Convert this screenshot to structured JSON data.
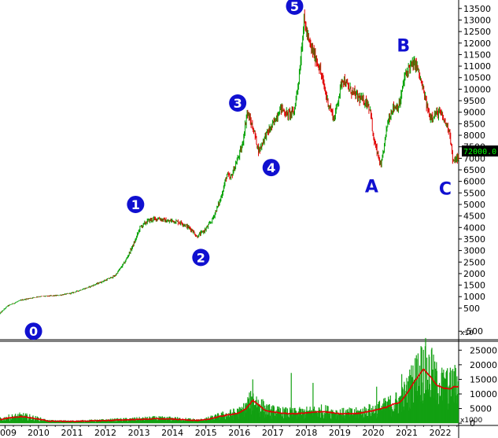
{
  "chart_data": [
    {
      "type": "candlestick",
      "title": "",
      "colors": {
        "up": "#00a000",
        "down": "#e00000",
        "price_label_bg": "#000000",
        "price_label_text": "#00ff00",
        "wave_label": "#1010d0"
      },
      "price_label": "72000.0",
      "y_axis": {
        "ylim": [
          -800,
          13800
        ],
        "tick_values": [
          -500,
          500,
          1000,
          1500,
          2000,
          2500,
          3000,
          3500,
          4000,
          4500,
          5000,
          5500,
          6000,
          6500,
          7000,
          7500,
          8000,
          8500,
          9000,
          9500,
          10000,
          10500,
          11000,
          11500,
          12000,
          12500,
          13000,
          13500
        ],
        "tick_labels": [
          "-500",
          "500",
          "1000",
          "1500",
          "2000",
          "2500",
          "3000",
          "3500",
          "4000",
          "4500",
          "5000",
          "5500",
          "6000",
          "6500",
          "7000",
          "7500",
          "8000",
          "8500",
          "9000",
          "9500",
          "10000",
          "10500",
          "11000",
          "11500",
          "12000",
          "12500",
          "13000",
          "13500"
        ],
        "multiplier_label": "x10"
      },
      "x_axis": {
        "xlim": [
          2008.85,
          2022.55
        ],
        "year_labels": [
          "009",
          "2010",
          "2011",
          "2012",
          "2013",
          "2014",
          "2015",
          "2016",
          "2017",
          "2018",
          "2019",
          "2020",
          "2021",
          "2022"
        ],
        "year_positions": [
          2009,
          2010,
          2011,
          2012,
          2013,
          2014,
          2015,
          2016,
          2017,
          2018,
          2019,
          2020,
          2021,
          2022
        ]
      },
      "price_anchors": {
        "x": [
          2008.85,
          2009.1,
          2009.5,
          2010.0,
          2010.6,
          2011.0,
          2011.5,
          2012.0,
          2012.3,
          2012.6,
          2012.9,
          2013.05,
          2013.3,
          2013.6,
          2013.9,
          2014.0,
          2014.3,
          2014.6,
          2014.75,
          2015.0,
          2015.2,
          2015.45,
          2015.65,
          2015.75,
          2015.9,
          2016.1,
          2016.25,
          2016.45,
          2016.6,
          2016.8,
          2017.0,
          2017.25,
          2017.45,
          2017.65,
          2017.8,
          2017.95,
          2018.1,
          2018.4,
          2018.65,
          2018.85,
          2019.1,
          2019.3,
          2019.6,
          2019.85,
          2019.95,
          2020.0,
          2020.25,
          2020.45,
          2020.6,
          2020.8,
          2020.95,
          2021.1,
          2021.3,
          2021.5,
          2021.7,
          2022.0,
          2022.15,
          2022.3,
          2022.4,
          2022.5
        ],
        "y": [
          250,
          600,
          850,
          1000,
          1050,
          1150,
          1400,
          1700,
          1900,
          2500,
          3400,
          4000,
          4300,
          4400,
          4250,
          4300,
          4200,
          3900,
          3600,
          3900,
          4300,
          5200,
          6300,
          6100,
          6700,
          7500,
          9000,
          8200,
          7300,
          8000,
          8400,
          9200,
          8900,
          9000,
          10500,
          13000,
          12000,
          11000,
          9500,
          8700,
          10500,
          10000,
          9600,
          9400,
          9000,
          8000,
          6600,
          8600,
          9200,
          9300,
          10500,
          11000,
          11100,
          10000,
          8800,
          9000,
          8600,
          8200,
          6800,
          7000
        ]
      },
      "volume": {
        "ylim": [
          -500,
          27500
        ],
        "tick_values": [
          0,
          5000,
          10000,
          15000,
          20000,
          25000
        ],
        "tick_labels": [
          "0",
          "5000",
          "10000",
          "15000",
          "20000",
          "25000"
        ],
        "multiplier_label": "x1000",
        "ma_anchors": {
          "x": [
            2008.85,
            2009.1,
            2009.5,
            2009.8,
            2010.3,
            2011.0,
            2012.0,
            2013.0,
            2013.5,
            2014.0,
            2014.8,
            2015.0,
            2015.5,
            2016.0,
            2016.2,
            2016.4,
            2016.6,
            2016.8,
            2017.2,
            2017.6,
            2018.0,
            2018.5,
            2019.0,
            2019.5,
            2020.0,
            2020.4,
            2020.6,
            2020.8,
            2021.0,
            2021.2,
            2021.5,
            2021.7,
            2021.9,
            2022.1,
            2022.3,
            2022.4
          ],
          "y": [
            1200,
            1800,
            2300,
            1800,
            700,
            600,
            900,
            1300,
            1500,
            1400,
            900,
            1200,
            2500,
            3500,
            5000,
            7800,
            6000,
            4200,
            3500,
            3200,
            3500,
            4000,
            3200,
            3300,
            4300,
            5500,
            6500,
            7200,
            10000,
            13800,
            18500,
            16000,
            13000,
            12000,
            11800,
            12500
          ]
        },
        "spikes": [
          {
            "x": 2016.4,
            "v": 15000
          },
          {
            "x": 2017.55,
            "v": 17200
          },
          {
            "x": 2018.2,
            "v": 13800
          },
          {
            "x": 2020.1,
            "v": 12500
          },
          {
            "x": 2020.85,
            "v": 16800
          },
          {
            "x": 2021.3,
            "v": 22000
          },
          {
            "x": 2021.45,
            "v": 26000
          },
          {
            "x": 2021.75,
            "v": 25800
          },
          {
            "x": 2022.05,
            "v": 19000
          }
        ]
      },
      "wave_labels": [
        {
          "text": "0",
          "style": "circle",
          "x": 2009.85,
          "y": -500
        },
        {
          "text": "1",
          "style": "circle",
          "x": 2012.9,
          "y": 5000
        },
        {
          "text": "2",
          "style": "circle",
          "x": 2014.85,
          "y": 2700
        },
        {
          "text": "3",
          "style": "circle",
          "x": 2015.95,
          "y": 9400
        },
        {
          "text": "4",
          "style": "circle",
          "x": 2016.95,
          "y": 6600
        },
        {
          "text": "5",
          "style": "circle",
          "x": 2017.65,
          "y": 13600
        },
        {
          "text": "A",
          "style": "plain",
          "x": 2019.95,
          "y": 5800
        },
        {
          "text": "B",
          "style": "plain",
          "x": 2020.9,
          "y": 11900
        },
        {
          "text": "C",
          "style": "plain",
          "x": 2022.15,
          "y": 5700
        }
      ]
    }
  ]
}
